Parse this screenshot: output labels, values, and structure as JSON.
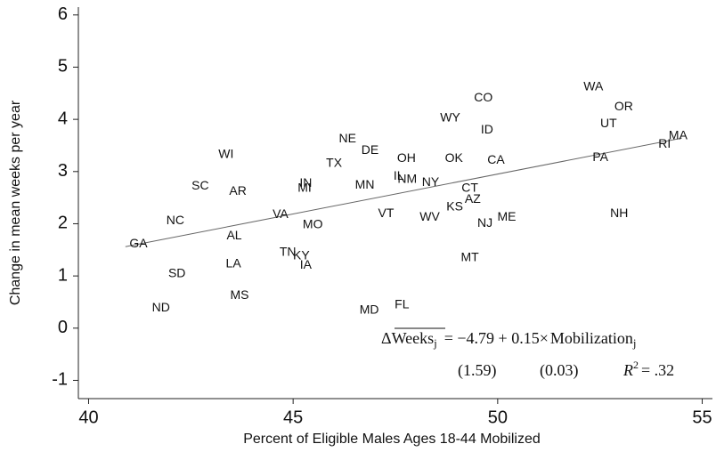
{
  "chart_data": {
    "type": "scatter",
    "x_label": "Percent of Eligible Males Ages 18-44 Mobilized",
    "y_label": "Change in mean weeks per year",
    "xlim": [
      39.75,
      55.25
    ],
    "ylim": [
      -1.35,
      6.15
    ],
    "xticks": [
      40,
      45,
      50,
      55
    ],
    "yticks": [
      -1,
      0,
      1,
      2,
      3,
      4,
      5,
      6
    ],
    "point_labels": [
      "GA",
      "NC",
      "SC",
      "SD",
      "ND",
      "WI",
      "AR",
      "AL",
      "LA",
      "MS",
      "VA",
      "TN",
      "KY",
      "IA",
      "MO",
      "IN",
      "MI",
      "TX",
      "NE",
      "DE",
      "MN",
      "VT",
      "MD",
      "FL",
      "OH",
      "IL",
      "NM",
      "NY",
      "WV",
      "WY",
      "OK",
      "KS",
      "AZ",
      "CT",
      "MT",
      "CO",
      "ID",
      "CA",
      "NJ",
      "ME",
      "WA",
      "OR",
      "UT",
      "PA",
      "NH",
      "RI",
      "MA"
    ],
    "x": [
      41.22,
      42.12,
      42.73,
      42.16,
      41.77,
      43.36,
      43.65,
      43.56,
      43.54,
      43.69,
      44.69,
      44.87,
      45.2,
      45.31,
      45.48,
      45.31,
      45.28,
      46.0,
      46.33,
      46.88,
      46.75,
      47.27,
      46.86,
      47.66,
      47.77,
      47.58,
      47.79,
      48.36,
      48.34,
      48.84,
      48.93,
      48.95,
      49.39,
      49.32,
      49.32,
      49.65,
      49.74,
      49.96,
      49.69,
      50.22,
      52.34,
      53.08,
      52.71,
      52.51,
      52.97,
      54.08,
      54.41
    ],
    "values": [
      1.61,
      2.05,
      2.72,
      1.04,
      0.38,
      3.32,
      2.62,
      1.76,
      1.23,
      0.62,
      2.17,
      1.45,
      1.38,
      1.2,
      1.98,
      2.77,
      2.68,
      3.15,
      3.62,
      3.4,
      2.74,
      2.19,
      0.34,
      0.44,
      3.25,
      2.91,
      2.85,
      2.79,
      2.12,
      4.02,
      3.25,
      2.32,
      2.46,
      2.68,
      1.35,
      4.41,
      3.79,
      3.21,
      2.0,
      2.12,
      4.62,
      4.24,
      3.91,
      3.26,
      2.19,
      3.52,
      3.68
    ],
    "fit_line": {
      "x": [
        40.9,
        54.5
      ],
      "y": [
        1.56,
        3.64
      ]
    },
    "equation": [
      "Δ",
      "Weeks",
      "j",
      "= −4.79 + 0.15×",
      "Mobilization",
      "j"
    ],
    "standard_errors": [
      "(1.59)",
      "(0.03)"
    ],
    "r_squared": [
      "R",
      "2",
      "= .32"
    ]
  }
}
